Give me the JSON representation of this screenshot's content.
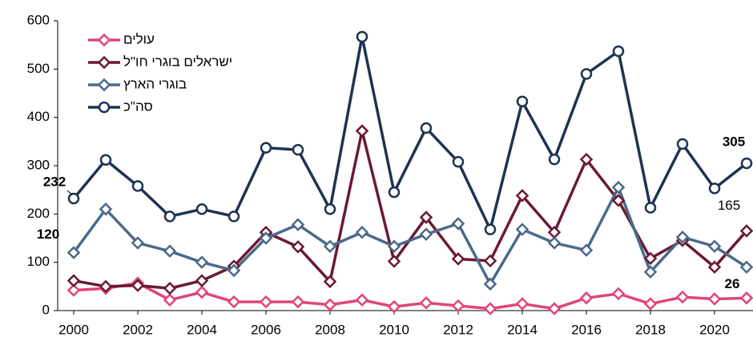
{
  "chart_data": {
    "type": "line",
    "x": [
      2000,
      2001,
      2002,
      2003,
      2004,
      2005,
      2006,
      2007,
      2008,
      2009,
      2010,
      2011,
      2012,
      2013,
      2014,
      2015,
      2016,
      2017,
      2018,
      2019,
      2020,
      2021
    ],
    "series": [
      {
        "name": "עולים",
        "color": "#e0457b",
        "marker": "diamond",
        "values": [
          42,
          46,
          57,
          22,
          38,
          18,
          18,
          18,
          12,
          22,
          8,
          16,
          10,
          4,
          14,
          4,
          26,
          35,
          14,
          28,
          24,
          26
        ]
      },
      {
        "name": "ישראלים בוגרי חו\"ל",
        "color": "#6b1a32",
        "marker": "diamond",
        "values": [
          62,
          50,
          52,
          46,
          62,
          92,
          162,
          132,
          60,
          372,
          102,
          193,
          107,
          103,
          238,
          162,
          313,
          228,
          108,
          145,
          90,
          165
        ]
      },
      {
        "name": "בוגרי הארץ",
        "color": "#4a6a8a",
        "marker": "diamond",
        "values": [
          120,
          210,
          140,
          123,
          100,
          83,
          150,
          178,
          133,
          162,
          133,
          158,
          180,
          55,
          168,
          140,
          125,
          255,
          80,
          152,
          133,
          90
        ]
      },
      {
        "name": "סה\"כ",
        "color": "#1f3350",
        "marker": "circle",
        "values": [
          232,
          312,
          258,
          195,
          210,
          195,
          337,
          333,
          210,
          567,
          245,
          378,
          308,
          168,
          433,
          313,
          490,
          537,
          213,
          345,
          253,
          305
        ]
      }
    ],
    "xlim": [
      1999.5,
      2021.2
    ],
    "xticks": [
      2000,
      2002,
      2004,
      2006,
      2008,
      2010,
      2012,
      2014,
      2016,
      2018,
      2020
    ],
    "ylim": [
      0,
      600
    ],
    "yticks": [
      0,
      100,
      200,
      300,
      400,
      500,
      600
    ],
    "grid": false,
    "legend": "upper-left"
  }
}
